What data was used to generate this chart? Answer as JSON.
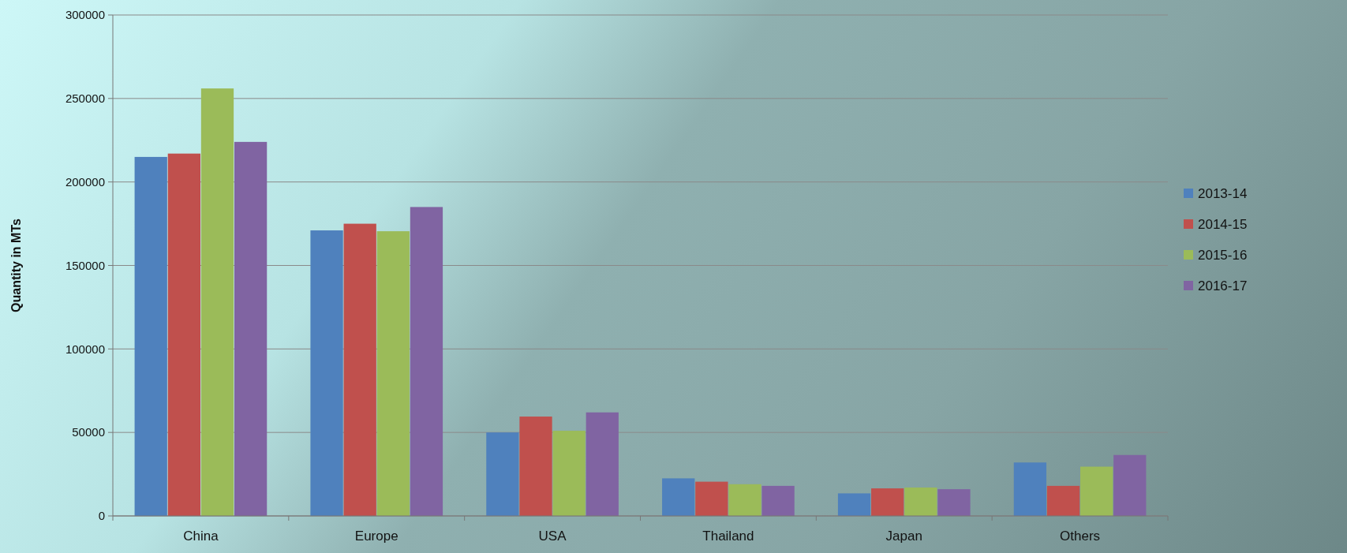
{
  "chart_data": {
    "type": "bar",
    "ylabel": "Quantity in MTs",
    "categories": [
      "China",
      "Europe",
      "USA",
      "Thailand",
      "Japan",
      "Others"
    ],
    "series": [
      {
        "name": "2013-14",
        "color": "#4f81bd",
        "values": [
          215000,
          171000,
          50000,
          22500,
          13500,
          32000
        ]
      },
      {
        "name": "2014-15",
        "color": "#c0504d",
        "values": [
          217000,
          175000,
          59500,
          20500,
          16500,
          18000
        ]
      },
      {
        "name": "2015-16",
        "color": "#9bbb59",
        "values": [
          256000,
          170500,
          51000,
          19000,
          17000,
          29500
        ]
      },
      {
        "name": "2016-17",
        "color": "#8064a2",
        "values": [
          224000,
          185000,
          62000,
          18000,
          16000,
          36500
        ]
      }
    ],
    "ylim": [
      0,
      300000
    ],
    "yticks": [
      0,
      50000,
      100000,
      150000,
      200000,
      250000,
      300000
    ],
    "grid": "y",
    "legend": "right"
  }
}
